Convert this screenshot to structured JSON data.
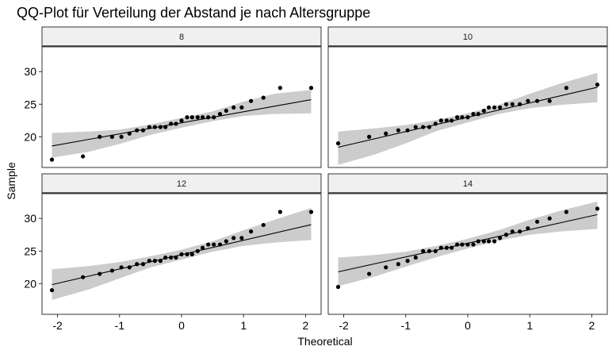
{
  "chart_data": {
    "type": "scatter",
    "title": "QQ-Plot für Verteilung der Abstand je nach Altersgruppe",
    "xlabel": "Theoretical",
    "ylabel": "Sample",
    "xlim": [
      -2.25,
      2.25
    ],
    "ylim": [
      15.3,
      33.8
    ],
    "x_ticks": [
      -2,
      -1,
      0,
      1,
      2
    ],
    "x_tick_labels": [
      "-2",
      "-1",
      "0",
      "1",
      "2"
    ],
    "y_ticks": [
      20,
      25,
      30
    ],
    "y_tick_labels": [
      "20",
      "25",
      "30"
    ],
    "grid": false,
    "facet_by": "Altersgruppe",
    "panels": [
      {
        "label": "8",
        "x": [
          -2.09,
          -1.59,
          -1.32,
          -1.12,
          -0.97,
          -0.84,
          -0.72,
          -0.62,
          -0.52,
          -0.43,
          -0.34,
          -0.26,
          -0.17,
          -0.09,
          0.0,
          0.09,
          0.17,
          0.26,
          0.34,
          0.43,
          0.52,
          0.62,
          0.72,
          0.84,
          0.97,
          1.12,
          1.32,
          1.59,
          2.09
        ],
        "y": [
          16.5,
          17.0,
          20.0,
          20.0,
          20.0,
          20.5,
          21.0,
          21.0,
          21.5,
          21.5,
          21.5,
          21.5,
          22.0,
          22.0,
          22.5,
          23.0,
          23.0,
          23.0,
          23.0,
          23.0,
          23.0,
          23.5,
          24.0,
          24.5,
          24.5,
          25.5,
          26.0,
          27.5,
          27.5
        ],
        "line": {
          "intercept": 22.15,
          "slope": 1.7
        },
        "band": {
          "x": [
            -2.09,
            -1.5,
            -1.0,
            -0.5,
            0.0,
            0.5,
            1.0,
            1.5,
            2.09
          ],
          "lower": [
            16.8,
            17.7,
            18.9,
            20.3,
            21.4,
            22.4,
            23.2,
            23.5,
            23.6
          ],
          "upper": [
            20.6,
            20.8,
            21.1,
            21.9,
            22.9,
            23.9,
            25.4,
            26.6,
            27.2
          ]
        }
      },
      {
        "label": "10",
        "x": [
          -2.09,
          -1.59,
          -1.32,
          -1.12,
          -0.97,
          -0.84,
          -0.72,
          -0.62,
          -0.52,
          -0.43,
          -0.34,
          -0.26,
          -0.17,
          -0.09,
          0.0,
          0.09,
          0.17,
          0.26,
          0.34,
          0.43,
          0.52,
          0.62,
          0.72,
          0.84,
          0.97,
          1.12,
          1.32,
          1.59,
          2.09
        ],
        "y": [
          19.0,
          20.0,
          20.5,
          21.0,
          21.0,
          21.5,
          21.5,
          21.5,
          22.0,
          22.5,
          22.5,
          22.5,
          23.0,
          23.0,
          23.0,
          23.5,
          23.5,
          24.0,
          24.5,
          24.5,
          24.5,
          25.0,
          25.0,
          25.0,
          25.5,
          25.5,
          25.5,
          27.5,
          28.0
        ],
        "line": {
          "intercept": 23.0,
          "slope": 2.2
        },
        "band": {
          "x": [
            -2.09,
            -1.5,
            -1.0,
            -0.5,
            0.0,
            0.5,
            1.0,
            1.5,
            2.09
          ],
          "lower": [
            15.7,
            17.3,
            19.0,
            20.9,
            22.2,
            23.5,
            24.4,
            24.9,
            25.3
          ],
          "upper": [
            20.8,
            21.3,
            21.8,
            22.6,
            23.6,
            24.9,
            26.6,
            28.2,
            29.8
          ]
        }
      },
      {
        "label": "12",
        "x": [
          -2.09,
          -1.59,
          -1.32,
          -1.12,
          -0.97,
          -0.84,
          -0.72,
          -0.62,
          -0.52,
          -0.43,
          -0.34,
          -0.26,
          -0.17,
          -0.09,
          0.0,
          0.09,
          0.17,
          0.26,
          0.34,
          0.43,
          0.52,
          0.62,
          0.72,
          0.84,
          0.97,
          1.12,
          1.32,
          1.59,
          2.09
        ],
        "y": [
          19.0,
          21.0,
          21.5,
          22.0,
          22.5,
          22.5,
          23.0,
          23.0,
          23.5,
          23.5,
          23.5,
          24.0,
          24.0,
          24.0,
          24.5,
          24.5,
          24.5,
          25.0,
          25.5,
          26.0,
          26.0,
          26.0,
          26.5,
          27.0,
          27.0,
          28.0,
          29.0,
          31.0,
          31.0
        ],
        "line": {
          "intercept": 24.45,
          "slope": 2.2
        },
        "band": {
          "x": [
            -2.09,
            -1.5,
            -1.0,
            -0.5,
            0.0,
            0.5,
            1.0,
            1.5,
            2.09
          ],
          "lower": [
            17.5,
            19.1,
            20.8,
            22.5,
            23.7,
            24.9,
            25.8,
            26.3,
            26.7
          ],
          "upper": [
            22.2,
            22.7,
            23.3,
            24.2,
            25.2,
            26.5,
            28.2,
            29.8,
            31.6
          ]
        }
      },
      {
        "label": "14",
        "x": [
          -2.09,
          -1.59,
          -1.32,
          -1.12,
          -0.97,
          -0.84,
          -0.72,
          -0.62,
          -0.52,
          -0.43,
          -0.34,
          -0.26,
          -0.17,
          -0.09,
          0.0,
          0.09,
          0.17,
          0.26,
          0.34,
          0.43,
          0.52,
          0.62,
          0.72,
          0.84,
          0.97,
          1.12,
          1.32,
          1.59,
          2.09
        ],
        "y": [
          19.5,
          21.5,
          22.5,
          23.0,
          23.5,
          24.0,
          25.0,
          25.0,
          25.0,
          25.5,
          25.5,
          25.5,
          26.0,
          26.0,
          26.0,
          26.0,
          26.5,
          26.5,
          26.5,
          26.5,
          27.0,
          27.5,
          28.0,
          28.0,
          28.5,
          29.5,
          30.0,
          31.0,
          31.5
        ],
        "line": {
          "intercept": 26.2,
          "slope": 2.1
        },
        "band": {
          "x": [
            -2.09,
            -1.5,
            -1.0,
            -0.5,
            0.0,
            0.5,
            1.0,
            1.5,
            2.09
          ],
          "lower": [
            19.6,
            21.1,
            22.6,
            24.1,
            25.4,
            26.6,
            27.5,
            28.0,
            28.4
          ],
          "upper": [
            24.0,
            24.4,
            24.9,
            25.8,
            26.9,
            28.2,
            29.8,
            31.2,
            32.6
          ]
        }
      }
    ]
  },
  "colors": {
    "background": "#ffffff",
    "points": "#000000",
    "line": "#000000",
    "band": "#cccccc",
    "strip": "#f0f0f0",
    "frame": "#333333"
  }
}
